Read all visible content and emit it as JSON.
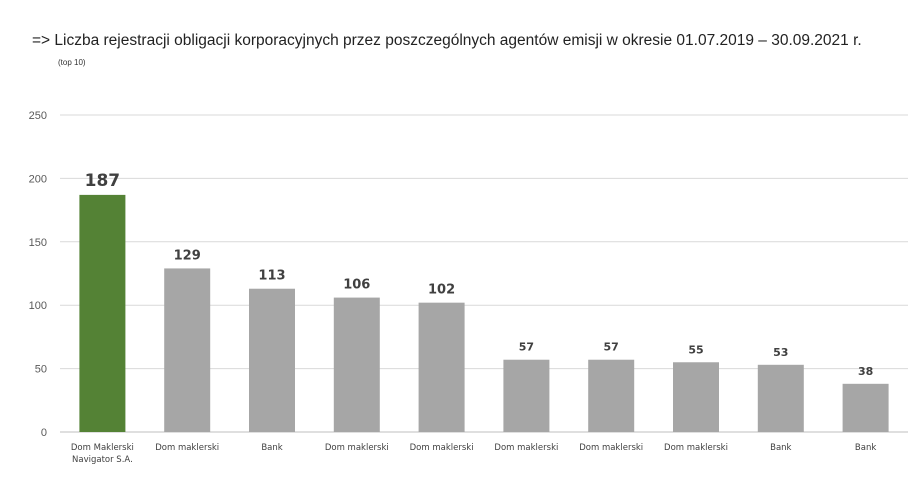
{
  "chart_data": {
    "type": "bar",
    "title": "=> Liczba rejestracji obligacji korporacyjnych przez poszczególnych agentów emisji w okresie 01.07.2019 – 30.09.2021 r.",
    "subtitle": "(top 10)",
    "xlabel": "",
    "ylabel": "",
    "ylim": [
      0,
      250
    ],
    "yticks": [
      0,
      50,
      100,
      150,
      200,
      250
    ],
    "grid": true,
    "legend": "none",
    "categories": [
      [
        "Dom Maklerski",
        "Navigator S.A."
      ],
      [
        "Dom maklerski"
      ],
      [
        "Bank"
      ],
      [
        "Dom maklerski"
      ],
      [
        "Dom maklerski"
      ],
      [
        "Dom maklerski"
      ],
      [
        "Dom maklerski"
      ],
      [
        "Dom maklerski"
      ],
      [
        "Bank"
      ],
      [
        "Bank"
      ]
    ],
    "values": [
      187,
      129,
      113,
      106,
      102,
      57,
      57,
      55,
      53,
      38
    ],
    "colors": {
      "highlight": "#548235",
      "default": "#a6a6a6",
      "grid": "#d9d9d9"
    }
  }
}
